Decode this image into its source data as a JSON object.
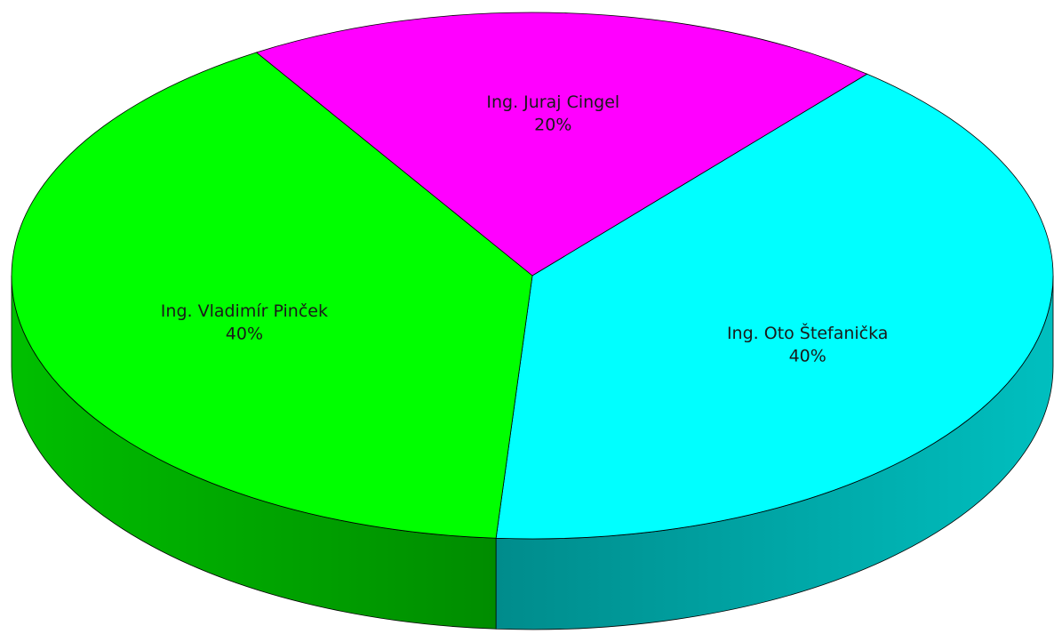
{
  "chart_data": {
    "type": "pie",
    "title": "",
    "style": "3d",
    "slices": [
      {
        "label": "Ing. Juraj Cingel",
        "value": 20,
        "value_label": "20%",
        "color": "#ff00ff"
      },
      {
        "label": "Ing. Oto Štefanička",
        "value": 40,
        "value_label": "40%",
        "color": "#00ffff"
      },
      {
        "label": "Ing. Vladimír Pinček",
        "value": 40,
        "value_label": "40%",
        "color": "#00ff00"
      }
    ],
    "data_labels": "inside",
    "legend": "none"
  }
}
